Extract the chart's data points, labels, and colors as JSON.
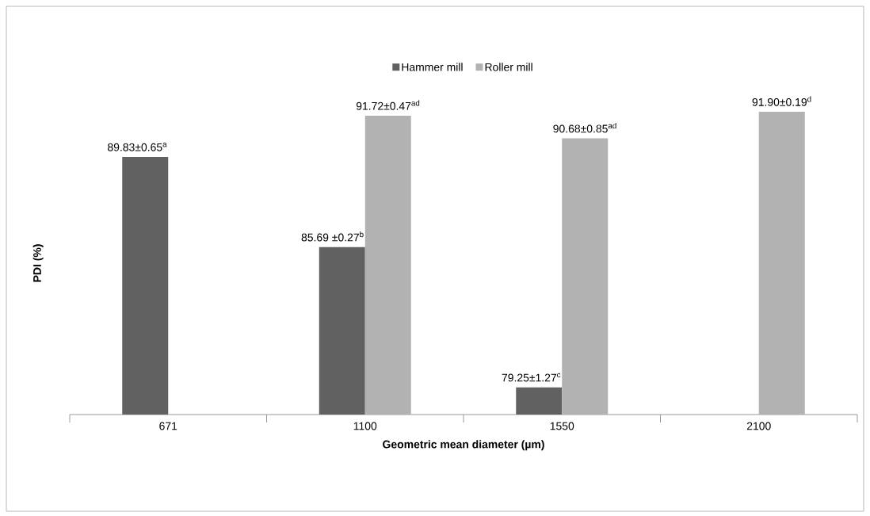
{
  "chart_data": {
    "type": "bar",
    "xlabel": "Geometric mean diameter (µm)",
    "ylabel": "PDI (%)",
    "categories": [
      "671",
      "1100",
      "1550",
      "2100"
    ],
    "series": [
      {
        "name": "Hammer mill",
        "color": "#616161",
        "values": [
          89.83,
          85.69,
          79.25,
          null
        ],
        "value_labels": [
          "89.83±0.65$^{a}$",
          "85.69 ±0.27$^{b}$",
          "79.25±1.27$^{c}$",
          null
        ]
      },
      {
        "name": "Roller mill",
        "color": "#b2b2b2",
        "values": [
          null,
          91.72,
          90.68,
          91.9
        ],
        "value_labels": [
          null,
          "91.72±0.47$^{ad}$",
          "90.68±0.85$^{ad}$",
          "91.90±0.19$^{d}$"
        ]
      }
    ],
    "ylim": [
      78,
      91.9
    ],
    "legend": "top",
    "grid": false
  }
}
